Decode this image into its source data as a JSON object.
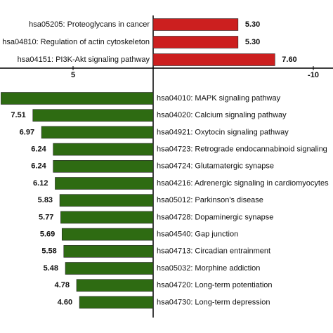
{
  "chart_data": {
    "type": "diverging-bar",
    "xticks": [
      {
        "value": -5,
        "label": "5"
      },
      {
        "value": 10,
        "label": "-10"
      }
    ],
    "series": [
      {
        "name": null,
        "color": "#cc1f1f",
        "direction": "right",
        "categories": [
          "hsa05205: Proteoglycans in cancer",
          "hsa04810: Regulation of actin cytoskeleton",
          "hsa04151: PI3K-Akt signaling pathway"
        ],
        "values": [
          5.3,
          5.3,
          7.6
        ],
        "value_labels": [
          "5.30",
          "5.30",
          "7.60"
        ]
      },
      {
        "name": null,
        "color": "#2e6b12",
        "direction": "left",
        "categories": [
          "hsa04010: MAPK signaling pathway",
          "hsa04020: Calcium signaling pathway",
          "hsa04921: Oxytocin signaling pathway",
          "hsa04723: Retrograde endocannabinoid signaling",
          "hsa04724: Glutamatergic synapse",
          "hsa04216: Adrenergic signaling in cardiomyocytes",
          "hsa05012: Parkinson's disease",
          "hsa04728: Dopaminergic synapse",
          "hsa04540: Gap junction",
          "hsa04713: Circadian entrainment",
          "hsa05032: Morphine addiction",
          "hsa04720: Long-term potentiation",
          "hsa04730: Long-term depression"
        ],
        "values": [
          9.5,
          7.51,
          6.97,
          6.24,
          6.24,
          6.12,
          5.83,
          5.77,
          5.69,
          5.58,
          5.48,
          4.78,
          4.6
        ],
        "value_labels": [
          null,
          "7.51",
          "6.97",
          "6.24",
          "6.24",
          "6.12",
          "5.83",
          "5.77",
          "5.69",
          "5.58",
          "5.48",
          "4.78",
          "4.60"
        ]
      }
    ]
  }
}
